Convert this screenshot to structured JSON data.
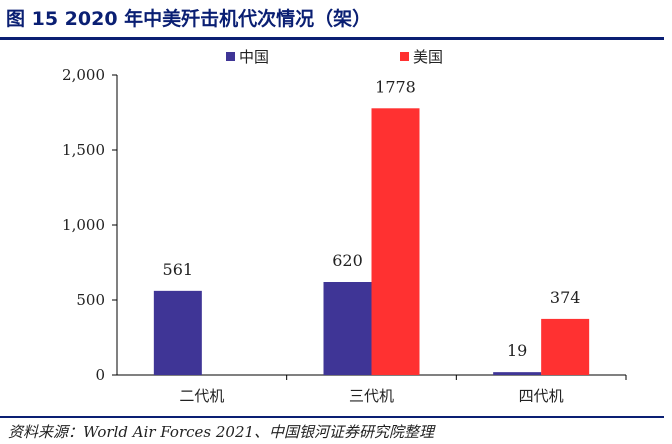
{
  "figure": {
    "title": "图 15  2020 年中美歼击机代次情况（架）",
    "source": "资料来源：World Air Forces 2021、中国银河证券研究院整理"
  },
  "colors": {
    "china": "#3f3596",
    "usa": "#ff3131",
    "rule": "#0a1f73"
  },
  "chart_data": {
    "type": "bar",
    "categories": [
      "二代机",
      "三代机",
      "四代机"
    ],
    "series": [
      {
        "name": "中国",
        "values": [
          561,
          620,
          19
        ],
        "labels": [
          "561",
          "620",
          "19"
        ]
      },
      {
        "name": "美国",
        "values": [
          null,
          1778,
          374
        ],
        "labels": [
          "",
          "1778",
          "374"
        ]
      }
    ],
    "y_ticks": [
      0,
      500,
      1000,
      1500,
      2000
    ],
    "y_tick_labels": [
      "0",
      "500",
      "1,000",
      "1,500",
      "2,000"
    ],
    "ylim": [
      0,
      2000
    ],
    "grid": false,
    "legend_position": "top-center"
  }
}
